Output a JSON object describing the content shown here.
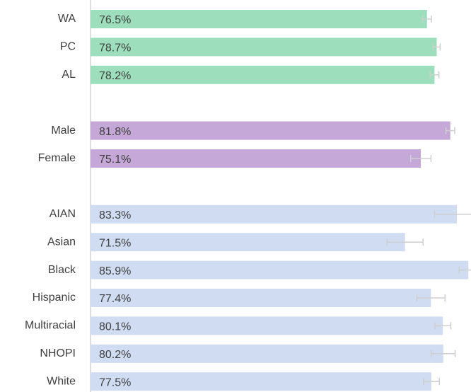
{
  "chart_data": {
    "type": "bar",
    "orientation": "horizontal",
    "xlim": [
      0,
      86.5
    ],
    "series": [
      {
        "color": "#9ddfbc",
        "categories": [
          "WA",
          "PC",
          "AL"
        ],
        "values": [
          76.5,
          78.7,
          78.2
        ],
        "errors": [
          1.0,
          0.8,
          1.0
        ],
        "value_labels": [
          "76.5%",
          "78.7%",
          "78.2%"
        ]
      },
      {
        "color": "#c5a8d8",
        "categories": [
          "Male",
          "Female"
        ],
        "values": [
          81.8,
          75.1
        ],
        "errors": [
          1.0,
          2.3
        ],
        "value_labels": [
          "81.8%",
          "75.1%"
        ]
      },
      {
        "color": "#d0dcf2",
        "categories": [
          "AIAN",
          "Asian",
          "Black",
          "Hispanic",
          "Multiracial",
          "NHOPI",
          "White"
        ],
        "values": [
          83.3,
          71.5,
          85.9,
          77.4,
          80.1,
          80.2,
          77.5
        ],
        "errors": [
          5.1,
          4.1,
          2.1,
          3.2,
          1.8,
          2.7,
          1.8
        ],
        "value_labels": [
          "83.3%",
          "71.5%",
          "85.9%",
          "77.4%",
          "80.1%",
          "80.2%",
          "77.5%"
        ]
      }
    ]
  }
}
